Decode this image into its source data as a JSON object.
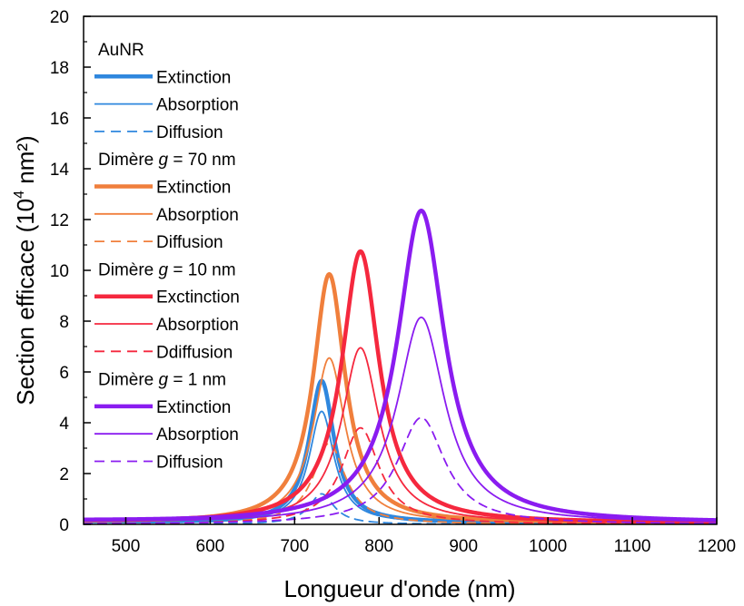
{
  "chart_data": {
    "type": "line",
    "title": "",
    "xlabel": "Longueur d'onde (nm)",
    "ylabel_parts": [
      "Section efficace (10",
      "4",
      " nm²)"
    ],
    "xlim": [
      450,
      1200
    ],
    "ylim": [
      0,
      20
    ],
    "xticks": [
      500,
      600,
      700,
      800,
      900,
      1000,
      1100,
      1200
    ],
    "yticks": [
      0,
      2,
      4,
      6,
      8,
      10,
      12,
      14,
      16,
      18,
      20
    ],
    "grid": false,
    "legend_placement": "top-left",
    "groups": [
      {
        "title_parts": [
          "AuNR"
        ],
        "color": "#2f87de",
        "center": 732,
        "width": 18,
        "series": [
          {
            "name": "Extinction",
            "kind": "extinction",
            "peak": 5.6
          },
          {
            "name": "Absorption",
            "kind": "absorption",
            "peak": 4.4
          },
          {
            "name": "Diffusion",
            "kind": "diffusion",
            "peak": 1.2
          }
        ]
      },
      {
        "title_parts": [
          "Dimère ",
          "g",
          " = 70 nm"
        ],
        "color": "#f07f3c",
        "center": 741,
        "width": 23,
        "series": [
          {
            "name": "Extinction",
            "kind": "extinction",
            "peak": 9.8
          },
          {
            "name": "Absorption",
            "kind": "absorption",
            "peak": 6.5
          },
          {
            "name": "Diffusion",
            "kind": "diffusion",
            "peak": 3.2
          }
        ]
      },
      {
        "title_parts": [
          "Dimère ",
          "g",
          " = 10 nm"
        ],
        "color": "#f5283e",
        "center": 778,
        "width": 27,
        "series": [
          {
            "name": "Exctinction",
            "kind": "extinction",
            "peak": 10.7
          },
          {
            "name": "Absorption",
            "kind": "absorption",
            "peak": 6.9
          },
          {
            "name": "Ddiffusion",
            "kind": "diffusion",
            "peak": 3.8
          }
        ]
      },
      {
        "title_parts": [
          "Dimère ",
          "g",
          " = 1 nm"
        ],
        "color": "#8a1cf0",
        "center": 850,
        "width": 34,
        "series": [
          {
            "name": "Extinction",
            "kind": "extinction",
            "peak": 12.3
          },
          {
            "name": "Absorption",
            "kind": "absorption",
            "peak": 8.1
          },
          {
            "name": "Diffusion",
            "kind": "diffusion",
            "peak": 4.2
          }
        ]
      }
    ]
  }
}
